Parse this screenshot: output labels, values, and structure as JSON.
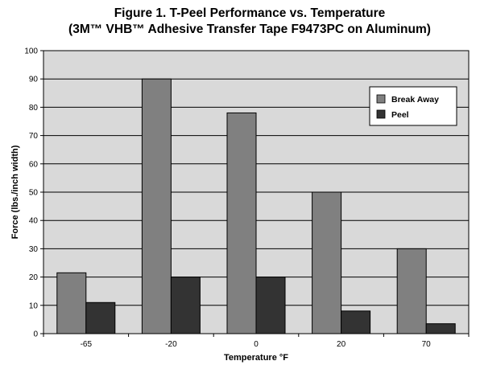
{
  "chart_data": {
    "type": "bar",
    "title": "Figure 1. T-Peel Performance vs. Temperature",
    "subtitle": "(3M™ VHB™ Adhesive Transfer Tape F9473PC on Aluminum)",
    "xlabel": "Temperature °F",
    "ylabel": "Force (lbs./inch width)",
    "categories": [
      "-65",
      "-20",
      "0",
      "20",
      "70"
    ],
    "series": [
      {
        "name": "Break Away",
        "values": [
          21.5,
          90,
          78,
          50,
          30
        ],
        "color": "#808080"
      },
      {
        "name": "Peel",
        "values": [
          11,
          20,
          20,
          8,
          3.5
        ],
        "color": "#333333"
      }
    ],
    "ylim": [
      0,
      100
    ],
    "yticks": [
      0,
      10,
      20,
      30,
      40,
      50,
      60,
      70,
      80,
      90,
      100
    ],
    "grid": true,
    "legend_position": "top-right",
    "plot_background": "#d9d9d9"
  }
}
